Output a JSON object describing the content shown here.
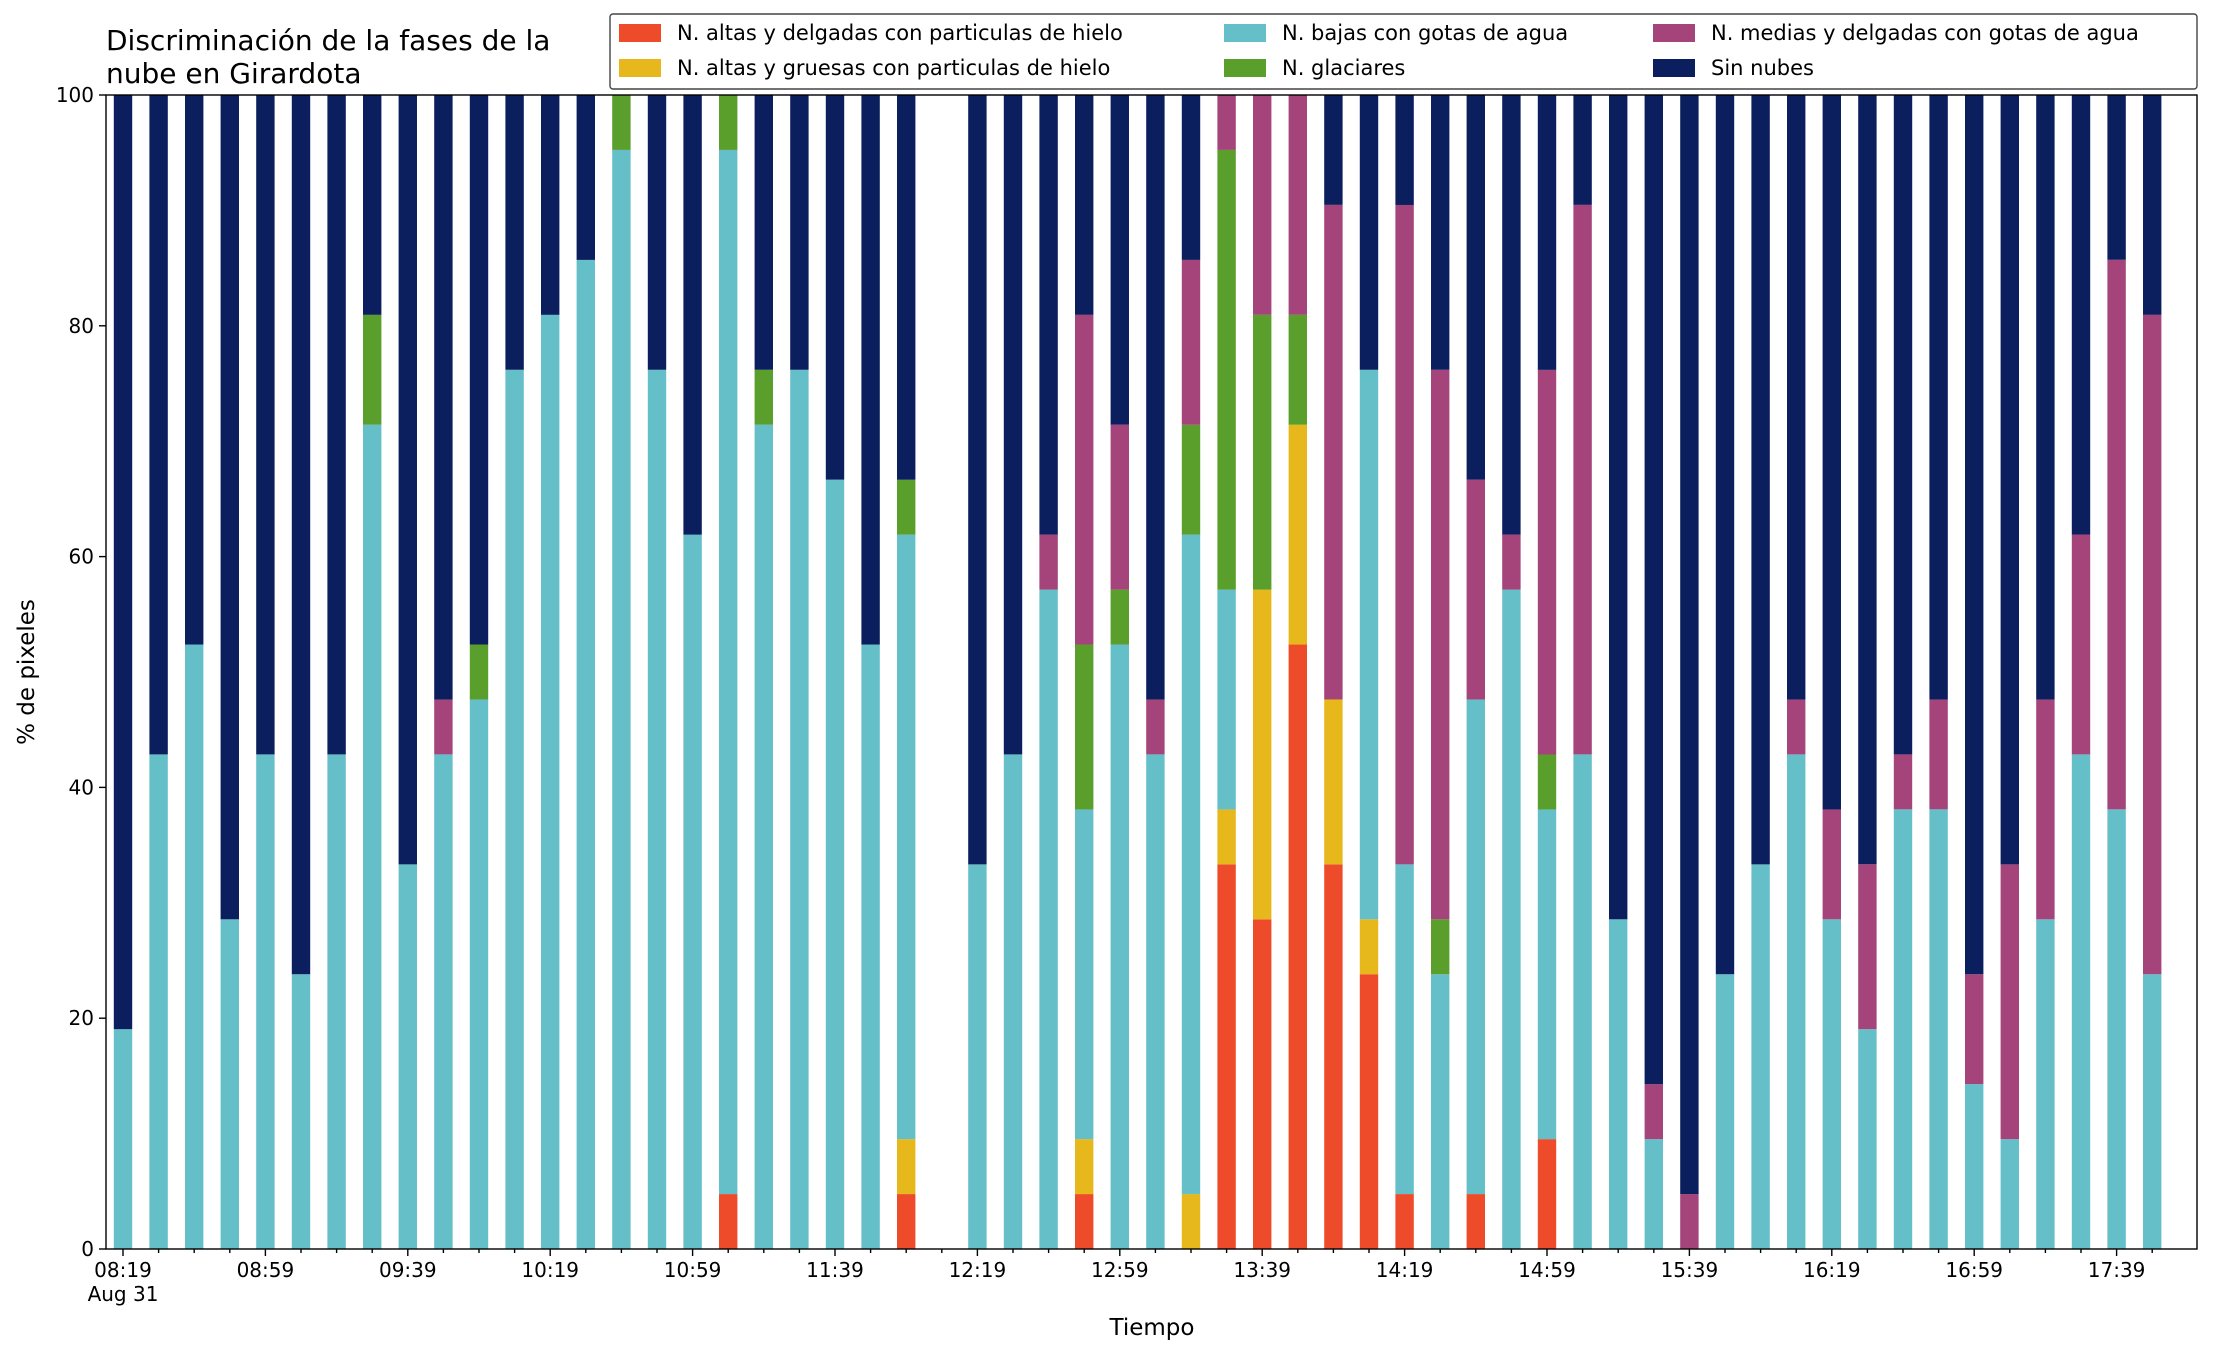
{
  "chart_data": {
    "type": "bar",
    "stacked": true,
    "title": [
      "Discriminación de la fases de la",
      "nube en Girardota"
    ],
    "xlabel": "Tiempo",
    "ylabel": "% de pixeles",
    "x_date_label": "Aug 31",
    "categories": [
      "08:19",
      null,
      null,
      null,
      "08:59",
      null,
      null,
      null,
      "09:39",
      null,
      null,
      null,
      "10:19",
      null,
      null,
      null,
      "10:59",
      null,
      null,
      null,
      "11:39",
      null,
      null,
      null,
      "12:19",
      null,
      null,
      null,
      "12:59",
      null,
      null,
      null,
      "13:39",
      null,
      null,
      null,
      "14:19",
      null,
      null,
      null,
      "14:59",
      null,
      null,
      null,
      "15:39",
      null,
      null,
      null,
      "16:19",
      null,
      null,
      null,
      "16:59",
      null,
      null,
      null,
      "17:39",
      null
    ],
    "ylim": [
      0,
      100
    ],
    "yticks": [
      0,
      20,
      40,
      60,
      80,
      100
    ],
    "legend": "top-right",
    "series": [
      {
        "name": "N. altas y delgadas con particulas de hielo",
        "color": "#ee4b2b",
        "values": [
          0,
          0,
          0,
          0,
          0,
          0,
          0,
          0,
          0,
          0,
          0,
          0,
          0,
          0,
          0,
          0,
          0,
          4.76,
          0,
          0,
          0,
          0,
          4.76,
          0,
          0,
          0,
          0,
          4.76,
          0,
          0,
          0,
          33.33,
          28.57,
          52.38,
          33.33,
          23.81,
          4.76,
          0,
          4.76,
          0,
          9.52,
          0,
          0,
          0,
          0,
          0,
          0,
          0,
          0,
          0,
          0,
          0,
          0,
          0,
          0,
          0,
          0,
          0
        ]
      },
      {
        "name": "N. altas y gruesas con particulas de hielo",
        "color": "#e6b81c",
        "values": [
          0,
          0,
          0,
          0,
          0,
          0,
          0,
          0,
          0,
          0,
          0,
          0,
          0,
          0,
          0,
          0,
          0,
          0,
          0,
          0,
          0,
          0,
          4.76,
          0,
          0,
          0,
          0,
          4.76,
          0,
          0,
          4.76,
          4.76,
          28.57,
          19.05,
          14.29,
          4.76,
          0,
          0,
          0,
          0,
          0,
          0,
          0,
          0,
          0,
          0,
          0,
          0,
          0,
          0,
          0,
          0,
          0,
          0,
          0,
          0,
          0,
          0
        ]
      },
      {
        "name": "N. bajas con gotas de agua",
        "color": "#65bfc9",
        "values": [
          19.05,
          42.86,
          52.38,
          28.57,
          42.86,
          23.81,
          42.86,
          71.43,
          33.33,
          42.86,
          47.62,
          76.19,
          80.95,
          85.71,
          95.24,
          76.19,
          61.9,
          90.48,
          71.43,
          76.19,
          66.67,
          52.38,
          52.38,
          0,
          33.33,
          42.86,
          57.14,
          28.57,
          52.38,
          42.86,
          57.14,
          19.05,
          0,
          0,
          0,
          47.62,
          28.57,
          23.81,
          42.86,
          57.14,
          28.57,
          42.86,
          28.57,
          9.52,
          0,
          23.81,
          33.33,
          42.86,
          28.57,
          19.05,
          38.1,
          38.1,
          14.29,
          9.52,
          28.57,
          42.86,
          38.1,
          23.81
        ]
      },
      {
        "name": "N. glaciares",
        "color": "#5a9e2c",
        "values": [
          0,
          0,
          0,
          0,
          0,
          0,
          0,
          9.52,
          0,
          0,
          4.76,
          0,
          0,
          0,
          4.76,
          0,
          0,
          4.76,
          4.76,
          0,
          0,
          0,
          4.76,
          0,
          0,
          0,
          0,
          14.29,
          4.76,
          0,
          9.52,
          38.1,
          23.81,
          9.52,
          0,
          0,
          0,
          4.76,
          0,
          0,
          4.76,
          0,
          0,
          0,
          0,
          0,
          0,
          0,
          0,
          0,
          0,
          0,
          0,
          0,
          0,
          0,
          0,
          0
        ]
      },
      {
        "name": "N. medias y delgadas con gotas de agua",
        "color": "#a4447a",
        "values": [
          0,
          0,
          0,
          0,
          0,
          0,
          0,
          0,
          0,
          4.76,
          0,
          0,
          0,
          0,
          0,
          0,
          0,
          0,
          0,
          0,
          0,
          0,
          0,
          0,
          0,
          0,
          4.76,
          28.57,
          14.29,
          4.76,
          14.29,
          4.76,
          19.05,
          19.05,
          42.86,
          0,
          57.14,
          47.62,
          19.05,
          4.76,
          33.33,
          47.62,
          0,
          4.76,
          4.76,
          0,
          0,
          4.76,
          9.52,
          14.29,
          4.76,
          9.52,
          9.52,
          23.81,
          19.05,
          19.05,
          47.62,
          57.14
        ]
      },
      {
        "name": "Sin nubes",
        "color": "#0b1f5e",
        "values": [
          80.95,
          57.14,
          47.62,
          71.43,
          57.14,
          76.19,
          57.14,
          19.05,
          66.67,
          52.38,
          47.62,
          23.81,
          19.05,
          14.29,
          0,
          23.81,
          38.1,
          0,
          23.81,
          23.81,
          33.33,
          47.62,
          33.33,
          0,
          66.67,
          57.14,
          38.1,
          19.05,
          28.57,
          52.38,
          14.29,
          0,
          0,
          0,
          9.52,
          23.81,
          9.52,
          23.81,
          33.33,
          38.1,
          23.81,
          9.52,
          71.43,
          85.71,
          95.24,
          76.19,
          66.67,
          52.38,
          61.9,
          66.67,
          57.14,
          52.38,
          76.19,
          66.67,
          52.38,
          38.1,
          14.29,
          19.05
        ]
      }
    ]
  }
}
